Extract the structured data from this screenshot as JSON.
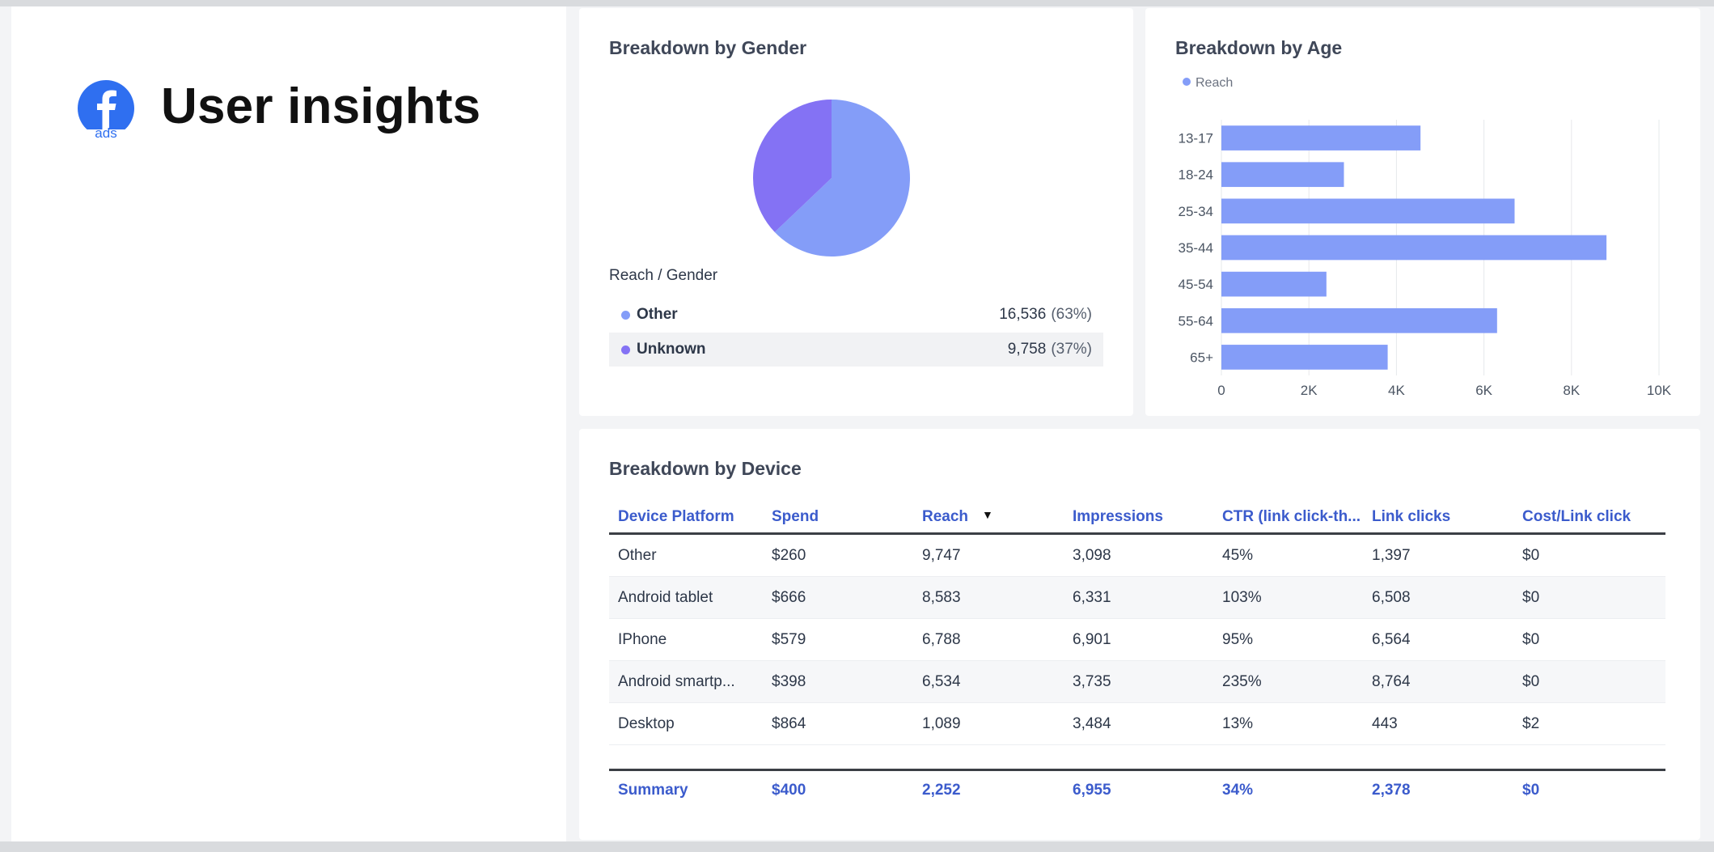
{
  "header": {
    "title": "User insights",
    "logo_text": "ads"
  },
  "colors": {
    "accent": "#3b5bcc",
    "series_a": "#849df8",
    "series_b": "#8472f4",
    "facebook_blue": "#2f6ff0"
  },
  "gender": {
    "title": "Breakdown by Gender",
    "sub_label": "Reach / Gender",
    "rows": [
      {
        "label": "Other",
        "value": "16,536",
        "pct": "(63%)"
      },
      {
        "label": "Unknown",
        "value": "9,758",
        "pct": "(37%)"
      }
    ]
  },
  "age": {
    "title": "Breakdown by Age",
    "legend": "Reach"
  },
  "device": {
    "title": "Breakdown by Device",
    "columns": [
      "Device Platform",
      "Spend",
      "Reach",
      "Impressions",
      "CTR (link click-th...",
      "Link clicks",
      "Cost/Link click"
    ],
    "rows": [
      [
        "Other",
        "$260",
        "9,747",
        "3,098",
        "45%",
        "1,397",
        "$0"
      ],
      [
        "Android tablet",
        "$666",
        "8,583",
        "6,331",
        "103%",
        "6,508",
        "$0"
      ],
      [
        "IPhone",
        "$579",
        "6,788",
        "6,901",
        "95%",
        "6,564",
        "$0"
      ],
      [
        "Android smartp...",
        "$398",
        "6,534",
        "3,735",
        "235%",
        "8,764",
        "$0"
      ],
      [
        "Desktop",
        "$864",
        "1,089",
        "3,484",
        "13%",
        "443",
        "$2"
      ]
    ],
    "summary": [
      "Summary",
      "$400",
      "2,252",
      "6,955",
      "34%",
      "2,378",
      "$0"
    ]
  },
  "chart_data": [
    {
      "type": "pie",
      "title": "Breakdown by Gender",
      "categories": [
        "Other",
        "Unknown"
      ],
      "values": [
        16536,
        9758
      ]
    },
    {
      "type": "bar",
      "orientation": "horizontal",
      "title": "Breakdown by Age",
      "categories": [
        "13-17",
        "18-24",
        "25-34",
        "35-44",
        "45-54",
        "55-64",
        "65+"
      ],
      "series": [
        {
          "name": "Reach",
          "values": [
            4550,
            2800,
            6700,
            8800,
            2400,
            6300,
            3800
          ]
        }
      ],
      "xlim": [
        0,
        10000
      ],
      "xticks": [
        "0",
        "2K",
        "4K",
        "6K",
        "8K",
        "10K"
      ],
      "grid": true,
      "legend": "top-left"
    }
  ]
}
